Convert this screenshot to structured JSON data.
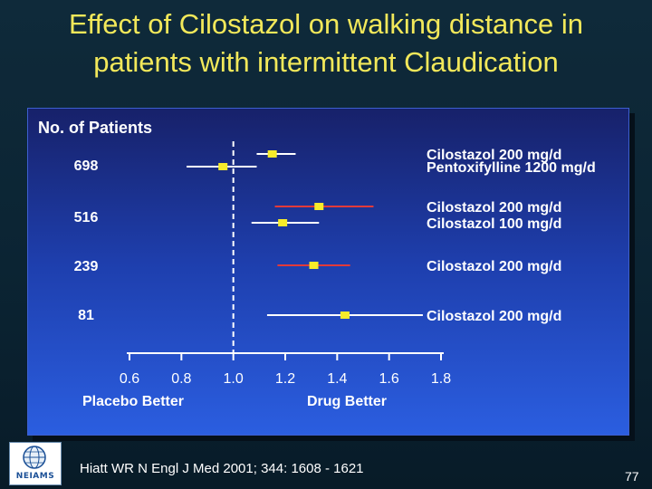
{
  "slide": {
    "title_line1": "Effect of Cilostazol on walking distance in",
    "title_line2": "patients with intermittent Claudication",
    "citation": "Hiatt WR N Engl J Med 2001; 344: 1608 - 1621",
    "page_number": "77",
    "logo_text": "NEIAMS"
  },
  "colors": {
    "title": "#f2e85a",
    "point": "#f7ec2a",
    "ci_cilostazol_200_long": "#e23a3a",
    "ci_default": "#ffffff",
    "reference_line": "#ffffff"
  },
  "chart_data": {
    "type": "forest",
    "column_header": "No. of Patients",
    "x_axis": {
      "min": 0.6,
      "max": 1.8,
      "ticks": [
        "0.6",
        "0.8",
        "1.0",
        "1.2",
        "1.4",
        "1.6",
        "1.8"
      ],
      "reference_value": 1.0,
      "left_label": "Placebo Better",
      "right_label": "Drug Better"
    },
    "groups": [
      {
        "n": "698",
        "rows": [
          {
            "label": "Cilostazol 200 mg/d",
            "estimate": 1.15,
            "lower": 1.09,
            "upper": 1.24,
            "ci_color": "white"
          },
          {
            "label": "Pentoxifylline 1200 mg/d",
            "estimate": 0.96,
            "lower": 0.82,
            "upper": 1.09,
            "ci_color": "white"
          }
        ]
      },
      {
        "n": "516",
        "rows": [
          {
            "label": "Cilostazol 200 mg/d",
            "estimate": 1.33,
            "lower": 1.16,
            "upper": 1.54,
            "ci_color": "red"
          },
          {
            "label": "Cilostazol 100 mg/d",
            "estimate": 1.19,
            "lower": 1.07,
            "upper": 1.33,
            "ci_color": "white"
          }
        ]
      },
      {
        "n": "239",
        "rows": [
          {
            "label": "Cilostazol 200 mg/d",
            "estimate": 1.31,
            "lower": 1.17,
            "upper": 1.45,
            "ci_color": "red"
          }
        ]
      },
      {
        "n": "81",
        "rows": [
          {
            "label": "Cilostazol 200 mg/d",
            "estimate": 1.43,
            "lower": 1.13,
            "upper": 1.73,
            "ci_color": "white"
          }
        ]
      }
    ]
  }
}
